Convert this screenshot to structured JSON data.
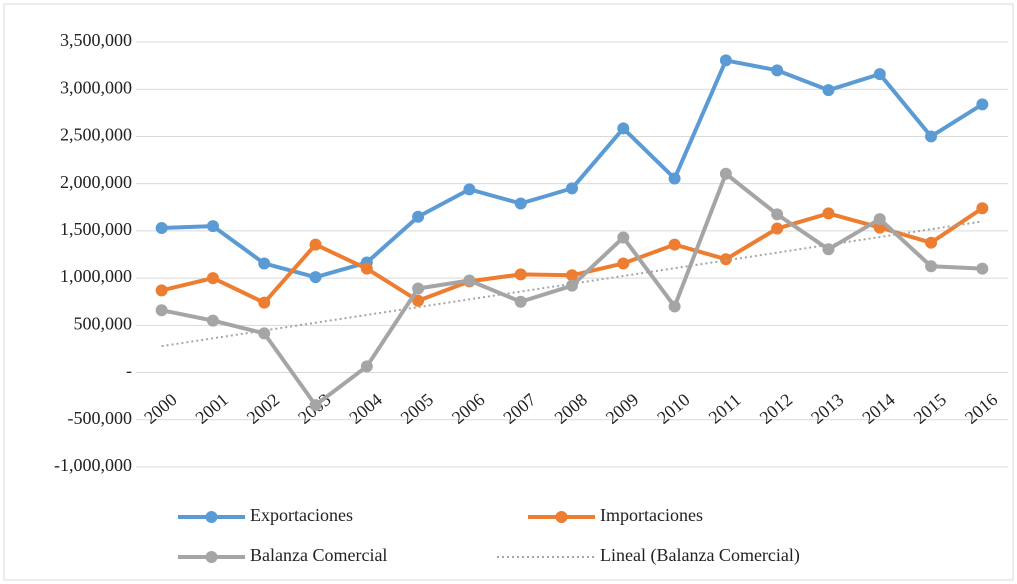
{
  "chart_data": {
    "type": "line",
    "categories": [
      "2000",
      "2001",
      "2002",
      "2003",
      "2004",
      "2005",
      "2006",
      "2007",
      "2008",
      "2009",
      "2010",
      "2011",
      "2012",
      "2013",
      "2014",
      "2015",
      "2016"
    ],
    "series": [
      {
        "name": "Exportaciones",
        "color": "#5b9bd5",
        "markers": true,
        "values": [
          1530000,
          1550000,
          1155000,
          1010000,
          1165000,
          1650000,
          1940000,
          1790000,
          1950000,
          2585000,
          2055000,
          3305000,
          3200000,
          2990000,
          3160000,
          2500000,
          2840000
        ]
      },
      {
        "name": "Importaciones",
        "color": "#ed7d31",
        "markers": true,
        "values": [
          870000,
          1000000,
          740000,
          1355000,
          1100000,
          760000,
          965000,
          1040000,
          1030000,
          1155000,
          1355000,
          1200000,
          1525000,
          1685000,
          1535000,
          1375000,
          1740000
        ]
      },
      {
        "name": "Balanza Comercial",
        "color": "#a5a5a5",
        "markers": true,
        "values": [
          660000,
          550000,
          415000,
          -345000,
          65000,
          890000,
          975000,
          750000,
          920000,
          1430000,
          700000,
          2105000,
          1675000,
          1305000,
          1625000,
          1125000,
          1100000
        ]
      },
      {
        "name": "Lineal (Balanza Comercial)",
        "color": "#a5a5a5",
        "markers": false,
        "dash": "dotted",
        "values": [
          280000,
          362500,
          445000,
          527500,
          610000,
          692500,
          775000,
          857500,
          940000,
          1022500,
          1105000,
          1187500,
          1270000,
          1352500,
          1435000,
          1517500,
          1600000
        ]
      }
    ],
    "ylim": [
      -1000000,
      3500000
    ],
    "yticks": [
      {
        "value": -1000000,
        "label": "-1,000,000"
      },
      {
        "value": -500000,
        "label": "-500,000"
      },
      {
        "value": 0,
        "label": "-"
      },
      {
        "value": 500000,
        "label": "500,000"
      },
      {
        "value": 1000000,
        "label": "1,000,000"
      },
      {
        "value": 1500000,
        "label": "1,500,000"
      },
      {
        "value": 2000000,
        "label": "2,000,000"
      },
      {
        "value": 2500000,
        "label": "2,500,000"
      },
      {
        "value": 3000000,
        "label": "3,000,000"
      },
      {
        "value": 3500000,
        "label": "3,500,000"
      }
    ],
    "grid": true,
    "legend": "bottom"
  }
}
